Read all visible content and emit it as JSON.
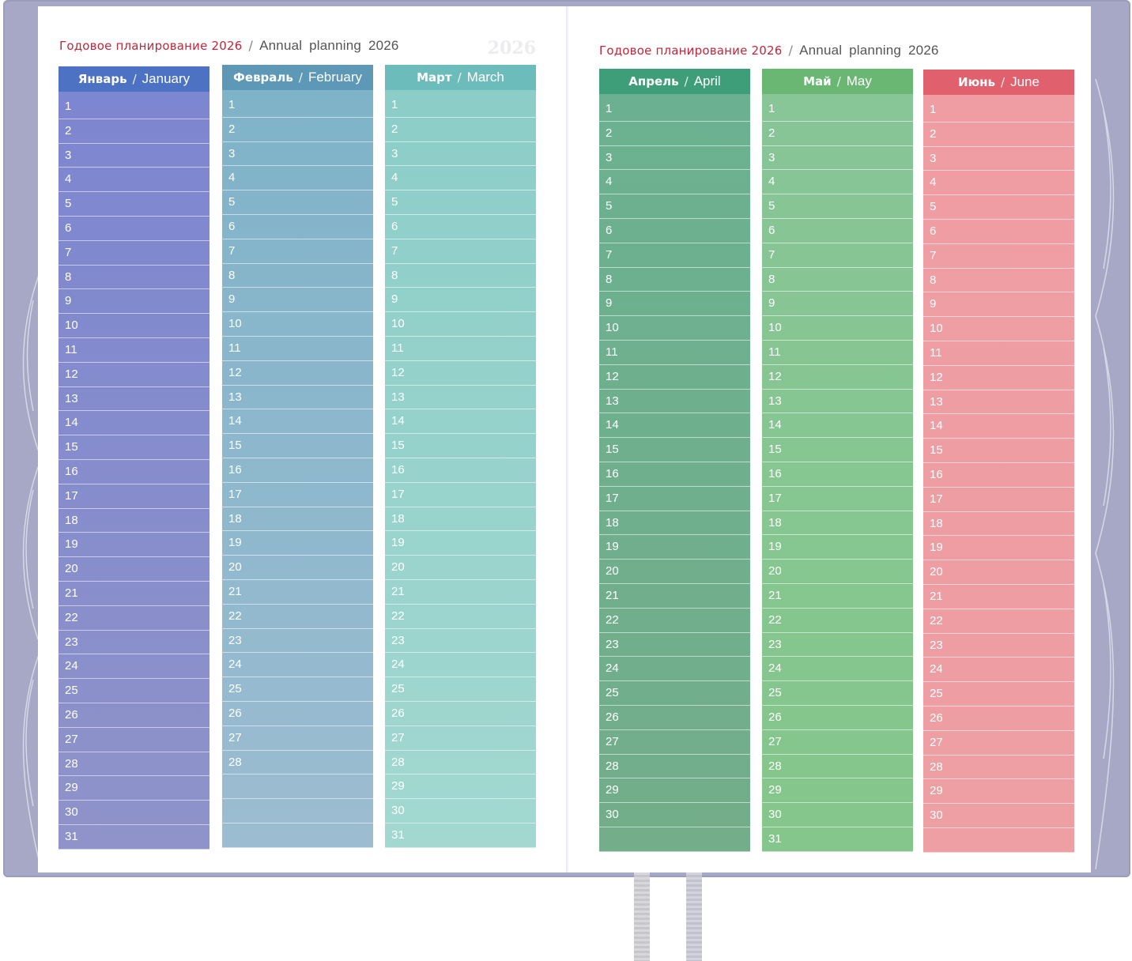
{
  "pages": [
    {
      "header": {
        "ru": "Годовое планирование 2026",
        "separator": "/",
        "en": "Annual planning 2026"
      },
      "watermark": "2026"
    },
    {
      "header": {
        "ru": "Годовое планирование 2026",
        "separator": "/",
        "en": "Annual planning 2026"
      }
    }
  ],
  "months": [
    {
      "ru": "Январь",
      "en": "January",
      "days": [
        "1",
        "2",
        "3",
        "4",
        "5",
        "6",
        "7",
        "8",
        "9",
        "10",
        "11",
        "12",
        "13",
        "14",
        "15",
        "16",
        "17",
        "18",
        "19",
        "20",
        "21",
        "22",
        "23",
        "24",
        "25",
        "26",
        "27",
        "28",
        "29",
        "30",
        "31"
      ],
      "head_color": "#4d72c4",
      "body_top": "#7d86d0",
      "body_bottom": "#8f93c9"
    },
    {
      "ru": "Февраль",
      "en": "February",
      "days": [
        "1",
        "2",
        "3",
        "4",
        "5",
        "6",
        "7",
        "8",
        "9",
        "10",
        "11",
        "12",
        "13",
        "14",
        "15",
        "16",
        "17",
        "18",
        "19",
        "20",
        "21",
        "22",
        "23",
        "24",
        "25",
        "26",
        "27",
        "28",
        "",
        "",
        " "
      ],
      "head_color": "#5d98b6",
      "body_top": "#7fb3c8",
      "body_bottom": "#9cbcd1"
    },
    {
      "ru": "Март",
      "en": "March",
      "days": [
        "1",
        "2",
        "3",
        "4",
        "5",
        "6",
        "7",
        "8",
        "9",
        "10",
        "11",
        "12",
        "13",
        "14",
        "15",
        "16",
        "17",
        "18",
        "19",
        "20",
        "21",
        "22",
        "23",
        "24",
        "25",
        "26",
        "27",
        "28",
        "29",
        "30",
        "31"
      ],
      "head_color": "#6dbcbc",
      "body_top": "#8ccdc8",
      "body_bottom": "#a2d8d0"
    },
    {
      "ru": "Апрель",
      "en": "April",
      "days": [
        "1",
        "2",
        "3",
        "4",
        "5",
        "6",
        "7",
        "8",
        "9",
        "10",
        "11",
        "12",
        "13",
        "14",
        "15",
        "16",
        "17",
        "18",
        "19",
        "20",
        "21",
        "22",
        "23",
        "24",
        "25",
        "26",
        "27",
        "28",
        "29",
        "30",
        ""
      ],
      "head_color": "#3f9e7a",
      "body_top": "#6bb191",
      "body_bottom": "#73ad8a"
    },
    {
      "ru": "Май",
      "en": "May",
      "days": [
        "1",
        "2",
        "3",
        "4",
        "5",
        "6",
        "7",
        "8",
        "9",
        "10",
        "11",
        "12",
        "13",
        "14",
        "15",
        "16",
        "17",
        "18",
        "19",
        "20",
        "21",
        "22",
        "23",
        "24",
        "25",
        "26",
        "27",
        "28",
        "29",
        "30",
        "31"
      ],
      "head_color": "#6ab774",
      "body_top": "#88c597",
      "body_bottom": "#84c68b"
    },
    {
      "ru": "Июнь",
      "en": "June",
      "days": [
        "1",
        "2",
        "3",
        "4",
        "5",
        "6",
        "7",
        "8",
        "9",
        "10",
        "11",
        "12",
        "13",
        "14",
        "15",
        "16",
        "17",
        "18",
        "19",
        "20",
        "21",
        "22",
        "23",
        "24",
        "25",
        "26",
        "27",
        "28",
        "29",
        "30",
        ""
      ],
      "head_color": "#e0606e",
      "body_top": "#ef9da3",
      "body_bottom": "#ee9fa3"
    }
  ]
}
